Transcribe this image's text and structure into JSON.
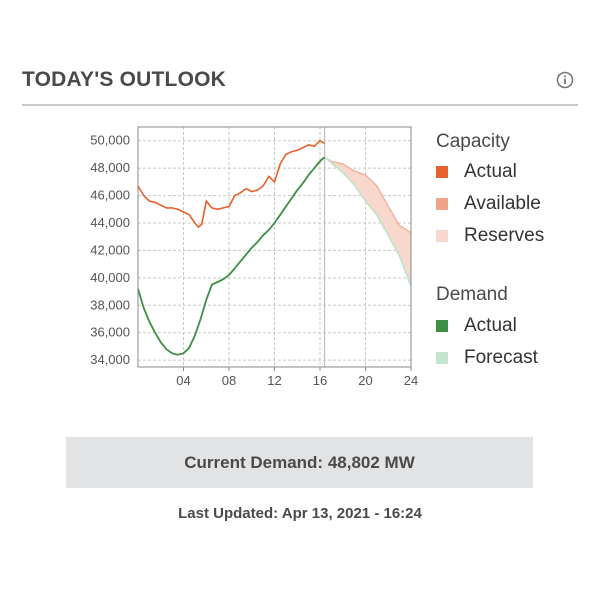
{
  "header": {
    "title": "TODAY'S OUTLOOK"
  },
  "icons": {
    "info": "info-circle-icon"
  },
  "legend": {
    "capacity_title": "Capacity",
    "capacity_items": [
      {
        "label": "Actual",
        "color": "#e8602b"
      },
      {
        "label": "Available",
        "color": "#f0a387"
      },
      {
        "label": "Reserves",
        "color": "#f8d7cc"
      }
    ],
    "demand_title": "Demand",
    "demand_items": [
      {
        "label": "Actual",
        "color": "#3e8e45"
      },
      {
        "label": "Forecast",
        "color": "#c5e4cd"
      }
    ]
  },
  "current_demand": "Current Demand: 48,802 MW",
  "last_updated": "Last Updated: Apr 13, 2021 - 16:24",
  "chart_data": {
    "type": "line",
    "xlabel": "",
    "ylabel": "",
    "xlim": [
      0,
      24
    ],
    "ylim": [
      33500,
      51000
    ],
    "xticks": [
      4,
      8,
      12,
      16,
      20,
      24
    ],
    "xtick_labels": [
      "04",
      "08",
      "12",
      "16",
      "20",
      "24"
    ],
    "yticks": [
      34000,
      36000,
      38000,
      40000,
      42000,
      44000,
      46000,
      48000,
      50000
    ],
    "ytick_labels": [
      "34,000",
      "36,000",
      "38,000",
      "40,000",
      "42,000",
      "44,000",
      "46,000",
      "48,000",
      "50,000"
    ],
    "grid": true,
    "current_time": 16.4,
    "series": [
      {
        "name": "Capacity Actual",
        "color": "#e8602b",
        "x": [
          0,
          0.5,
          1,
          1.5,
          2,
          2.5,
          3,
          3.5,
          4,
          4.5,
          5,
          5.3,
          5.6,
          6,
          6.5,
          7,
          7.5,
          8,
          8.5,
          9,
          9.5,
          10,
          10.5,
          11,
          11.5,
          12,
          12.5,
          13,
          13.5,
          14,
          14.5,
          15,
          15.5,
          16,
          16.4
        ],
        "values": [
          46700,
          46000,
          45600,
          45500,
          45300,
          45100,
          45100,
          45000,
          44800,
          44600,
          44000,
          43700,
          43900,
          45600,
          45100,
          45000,
          45100,
          45200,
          46000,
          46200,
          46500,
          46300,
          46400,
          46700,
          47400,
          47000,
          48300,
          49000,
          49200,
          49300,
          49500,
          49700,
          49600,
          50000,
          49800
        ]
      },
      {
        "name": "Demand Actual",
        "color": "#3e8e45",
        "x": [
          0,
          0.5,
          1,
          1.5,
          2,
          2.5,
          3,
          3.5,
          4,
          4.5,
          5,
          5.5,
          6,
          6.5,
          7,
          7.5,
          8,
          8.5,
          9,
          9.5,
          10,
          10.5,
          11,
          11.5,
          12,
          12.5,
          13,
          13.5,
          14,
          14.5,
          15,
          15.5,
          16,
          16.4
        ],
        "values": [
          39200,
          37800,
          36800,
          36000,
          35300,
          34800,
          34500,
          34400,
          34500,
          34900,
          35800,
          37000,
          38400,
          39500,
          39700,
          39900,
          40200,
          40700,
          41200,
          41700,
          42200,
          42600,
          43100,
          43500,
          44000,
          44600,
          45200,
          45800,
          46400,
          46900,
          47500,
          48000,
          48500,
          48800
        ]
      },
      {
        "name": "Capacity Available (forecast upper)",
        "color": "#f0a387",
        "x": [
          16.4,
          17,
          18,
          19,
          20,
          21,
          22,
          23,
          24
        ],
        "values": [
          48800,
          48500,
          48300,
          47800,
          47500,
          46700,
          45200,
          43800,
          43300
        ]
      },
      {
        "name": "Capacity Reserves (forecast lower)",
        "color": "#f8d7cc",
        "x": [
          16.4,
          17,
          18,
          19,
          20,
          21,
          22,
          23,
          24
        ],
        "values": [
          48800,
          48300,
          47600,
          46700,
          45500,
          44500,
          43000,
          41500,
          39500
        ]
      },
      {
        "name": "Demand Forecast",
        "color": "#c5e4cd",
        "x": [
          16.4,
          17,
          18,
          19,
          20,
          21,
          22,
          23,
          24
        ],
        "values": [
          48800,
          48400,
          47700,
          46800,
          45600,
          44600,
          43100,
          41600,
          39400
        ]
      }
    ]
  }
}
